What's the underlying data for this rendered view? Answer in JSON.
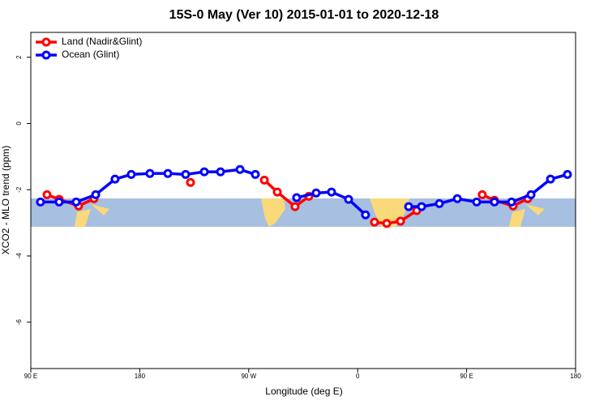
{
  "chart_data": {
    "type": "line",
    "title": "15S-0 May (Ver 10)   2015-01-01 to 2020-12-18",
    "xlabel": "Longitude (deg E)",
    "ylabel": "XCO2 - MLO trend (ppm)",
    "xlim": [
      90,
      540
    ],
    "ylim": [
      -7.4,
      2.75
    ],
    "xticks": [
      {
        "value": 90,
        "label": "90 E"
      },
      180,
      {
        "value": 270,
        "label": "90 W"
      },
      {
        "value": 360,
        "label": "0"
      },
      {
        "value": 450,
        "label": "90 E"
      },
      {
        "value": 540,
        "label": "180"
      }
    ],
    "yticks": [
      2,
      0,
      -2,
      -4,
      -6
    ],
    "legend": "top-left",
    "series": [
      {
        "name": "Land (Nadir&Glint)",
        "color": "#ff0000",
        "x": [
          103.4,
          113.4,
          129.5,
          142.2,
          null,
          221.9,
          null,
          282.9,
          293.6,
          308.3,
          319.7,
          null,
          373.9,
          384.0,
          395.4,
          408.8,
          null,
          462.9,
          473.0,
          488.4,
          500.5
        ],
        "values": [
          -2.15,
          -2.29,
          -2.49,
          -2.27,
          null,
          -1.78,
          null,
          -1.71,
          -2.07,
          -2.51,
          -2.2,
          null,
          -2.98,
          -3.02,
          -2.95,
          -2.63,
          null,
          -2.15,
          -2.32,
          -2.49,
          -2.27
        ]
      },
      {
        "name": "Ocean (Glint)",
        "color": "#0000ff",
        "x": [
          98.0,
          113.4,
          127.5,
          143.6,
          159.6,
          173.0,
          188.4,
          203.2,
          217.9,
          233.3,
          246.7,
          262.8,
          275.5,
          null,
          309.6,
          325.7,
          338.4,
          352.5,
          366.5,
          null,
          402.1,
          412.8,
          427.5,
          442.3,
          458.3,
          473.0,
          487.1,
          503.2,
          519.3,
          533.3
        ],
        "values": [
          -2.37,
          -2.37,
          -2.37,
          -2.15,
          -1.68,
          -1.54,
          -1.51,
          -1.51,
          -1.54,
          -1.46,
          -1.46,
          -1.39,
          -1.54,
          null,
          -2.24,
          -2.1,
          -2.07,
          -2.29,
          -2.76,
          null,
          -2.51,
          -2.51,
          -2.42,
          -2.27,
          -2.37,
          -2.37,
          -2.37,
          -2.15,
          -1.68,
          -1.54
        ]
      }
    ]
  }
}
